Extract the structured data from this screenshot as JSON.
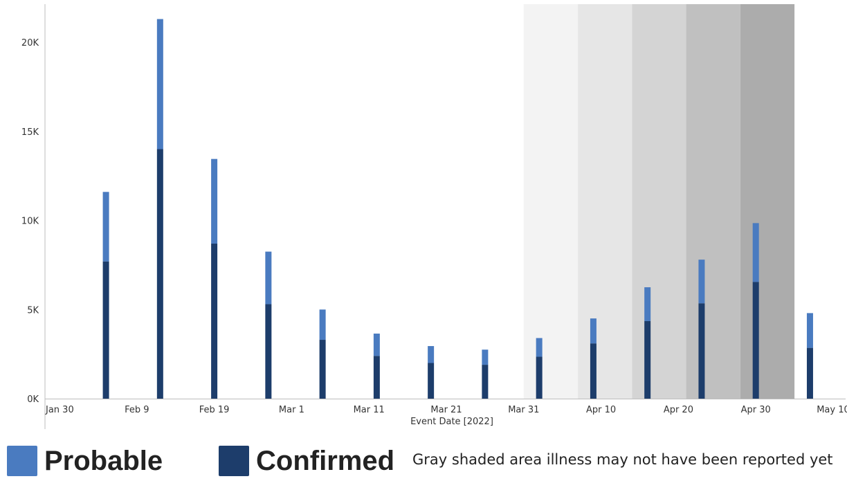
{
  "chart_data": {
    "type": "bar",
    "stacked": true,
    "xlabel": "Event Date [2022]",
    "ylabel": "",
    "ylim": [
      0,
      21500
    ],
    "y_ticks": [
      {
        "value": 0,
        "label": "0K"
      },
      {
        "value": 5000,
        "label": "5K"
      },
      {
        "value": 10000,
        "label": "10K"
      },
      {
        "value": 15000,
        "label": "15K"
      },
      {
        "value": 20000,
        "label": "20K"
      }
    ],
    "x_range": [
      "2022-01-30",
      "2022-05-10"
    ],
    "x_ticks": [
      {
        "date": "2022-01-30",
        "label": "Jan 30"
      },
      {
        "date": "2022-02-09",
        "label": "Feb 9"
      },
      {
        "date": "2022-02-19",
        "label": "Feb 19"
      },
      {
        "date": "2022-03-01",
        "label": "Mar 1"
      },
      {
        "date": "2022-03-11",
        "label": "Mar 11"
      },
      {
        "date": "2022-03-21",
        "label": "Mar 21"
      },
      {
        "date": "2022-03-31",
        "label": "Mar 31"
      },
      {
        "date": "2022-04-10",
        "label": "Apr 10"
      },
      {
        "date": "2022-04-20",
        "label": "Apr 20"
      },
      {
        "date": "2022-04-30",
        "label": "Apr 30"
      },
      {
        "date": "2022-05-10",
        "label": "May 10"
      }
    ],
    "dates": [
      "2022-02-05",
      "2022-02-12",
      "2022-02-19",
      "2022-02-26",
      "2022-03-05",
      "2022-03-12",
      "2022-03-19",
      "2022-03-26",
      "2022-04-02",
      "2022-04-09",
      "2022-04-16",
      "2022-04-23",
      "2022-04-30",
      "2022-05-07"
    ],
    "series": [
      {
        "name": "Confirmed",
        "color": "#1d3d6b",
        "values": [
          7700,
          14000,
          8700,
          5300,
          3300,
          2400,
          2000,
          1900,
          2350,
          3100,
          4350,
          5350,
          6550,
          2850
        ]
      },
      {
        "name": "Probable",
        "color": "#4a7bc0",
        "values": [
          3900,
          7300,
          4750,
          2950,
          1700,
          1250,
          950,
          850,
          1050,
          1400,
          1900,
          2450,
          3300,
          1950
        ]
      }
    ],
    "gray_bands": [
      {
        "from": "2022-03-31",
        "to": "2022-04-07",
        "color": "#f3f3f3"
      },
      {
        "from": "2022-04-07",
        "to": "2022-04-14",
        "color": "#e6e6e6"
      },
      {
        "from": "2022-04-14",
        "to": "2022-04-21",
        "color": "#d4d4d4"
      },
      {
        "from": "2022-04-21",
        "to": "2022-04-28",
        "color": "#c0c0c0"
      },
      {
        "from": "2022-04-28",
        "to": "2022-05-05",
        "color": "#acacac"
      }
    ],
    "grid": false
  },
  "legend": {
    "probable_label": "Probable",
    "confirmed_label": "Confirmed",
    "probable_color": "#4a7bc0",
    "confirmed_color": "#1d3d6b",
    "note": "Gray shaded area illness may not have been reported yet"
  }
}
